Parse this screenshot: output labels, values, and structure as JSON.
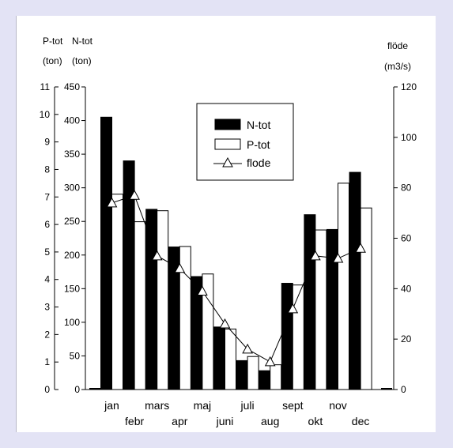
{
  "chart_data": {
    "type": "bar",
    "title": "",
    "xlabel": "",
    "categories": [
      "jan",
      "febr",
      "mars",
      "apr",
      "maj",
      "juni",
      "juli",
      "aug",
      "sept",
      "okt",
      "nov",
      "dec"
    ],
    "left_axis_ptot": {
      "label_line1": "P-tot",
      "label_line2": "(ton)",
      "ticks": [
        0,
        1,
        2,
        3,
        4,
        5,
        6,
        7,
        8,
        9,
        10,
        11
      ],
      "ylim": [
        0,
        11
      ]
    },
    "left_axis_ntot": {
      "label_line1": "N-tot",
      "label_line2": "(ton)",
      "ticks": [
        0,
        50,
        100,
        150,
        200,
        250,
        300,
        350,
        400,
        450
      ],
      "ylim": [
        0,
        450
      ]
    },
    "right_axis": {
      "label_line1": "flöde",
      "label_line2": "(m3/s)",
      "ticks": [
        0,
        20,
        40,
        60,
        80,
        100,
        120
      ],
      "ylim": [
        0,
        120
      ]
    },
    "series": [
      {
        "name": "N-tot",
        "type": "bar",
        "axis": "ntot",
        "color": "#000000",
        "values": [
          405,
          340,
          268,
          212,
          168,
          93,
          43,
          28,
          158,
          260,
          238,
          323
        ]
      },
      {
        "name": "P-tot",
        "type": "bar",
        "axis": "ptot",
        "color": "#ffffff",
        "values": [
          7.1,
          6.1,
          6.5,
          5.2,
          4.2,
          2.2,
          1.2,
          0.9,
          3.8,
          5.8,
          7.5,
          6.6
        ]
      },
      {
        "name": "flode",
        "type": "line",
        "axis": "flow",
        "color": "#000000",
        "marker": "triangle",
        "values": [
          74,
          77,
          53,
          48,
          39,
          26,
          16,
          11,
          32,
          53,
          52,
          56
        ]
      }
    ],
    "legend_position": "top-center",
    "grid": false
  }
}
